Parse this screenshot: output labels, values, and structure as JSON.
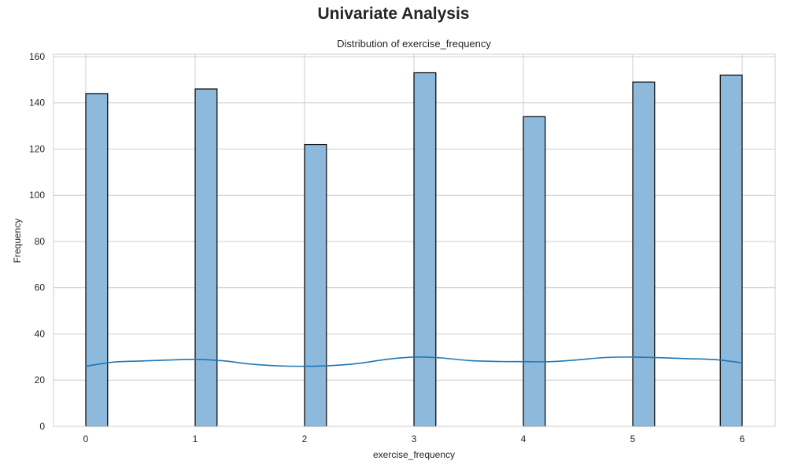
{
  "figure": {
    "suptitle": "Univariate Analysis"
  },
  "chart_data": {
    "type": "bar",
    "subtype": "histogram",
    "title": "Distribution of exercise_frequency",
    "xlabel": "exercise_frequency",
    "ylabel": "Frequency",
    "x_ticks": [
      0,
      1,
      2,
      3,
      4,
      5,
      6
    ],
    "y_ticks": [
      0,
      20,
      40,
      60,
      80,
      100,
      120,
      140,
      160
    ],
    "xlim": [
      -0.25,
      6.25
    ],
    "ylim": [
      0,
      161
    ],
    "grid": true,
    "bar_width": 0.2,
    "categories": [
      0,
      1,
      2,
      3,
      4,
      5,
      6
    ],
    "values": [
      144,
      146,
      122,
      153,
      134,
      149,
      152
    ],
    "bar_starts": [
      0,
      1,
      2,
      3,
      4,
      5,
      5.8
    ],
    "kde": {
      "x": [
        0,
        0.25,
        0.5,
        0.75,
        1,
        1.25,
        1.5,
        1.75,
        2,
        2.25,
        2.5,
        2.75,
        3,
        3.25,
        3.5,
        3.75,
        4,
        4.25,
        4.5,
        4.75,
        5,
        5.25,
        5.5,
        5.75,
        6
      ],
      "y": [
        26,
        27.8,
        28.3,
        28.7,
        29,
        28.4,
        27,
        26.2,
        26,
        26.3,
        27.3,
        29,
        30,
        29.6,
        28.5,
        28.1,
        28,
        28,
        28.8,
        29.8,
        30,
        29.7,
        29.3,
        28.9,
        27.5
      ]
    },
    "colors": {
      "bar_fill": "#8db9dc",
      "bar_edge": "#000000",
      "kde_line": "#1f77b4",
      "grid": "#cccccc",
      "spine": "#cccccc"
    }
  }
}
